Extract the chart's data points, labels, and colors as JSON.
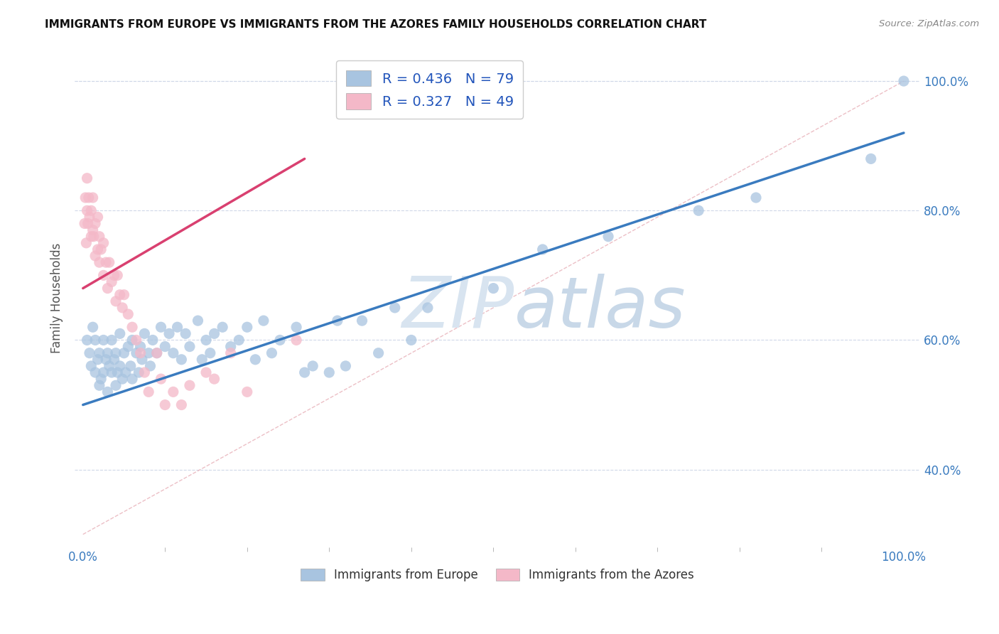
{
  "title": "IMMIGRANTS FROM EUROPE VS IMMIGRANTS FROM THE AZORES FAMILY HOUSEHOLDS CORRELATION CHART",
  "source": "Source: ZipAtlas.com",
  "ylabel": "Family Households",
  "R_blue": 0.436,
  "N_blue": 79,
  "R_pink": 0.327,
  "N_pink": 49,
  "blue_color": "#a8c4e0",
  "pink_color": "#f4b8c8",
  "trendline_blue_color": "#3a7bbf",
  "trendline_pink_color": "#d94070",
  "trendline_ref_color": "#e8b0b8",
  "watermark_color": "#d8e4f0",
  "legend_blue_label": "Immigrants from Europe",
  "legend_pink_label": "Immigrants from the Azores",
  "blue_x": [
    0.005,
    0.008,
    0.01,
    0.012,
    0.015,
    0.015,
    0.018,
    0.02,
    0.02,
    0.022,
    0.025,
    0.025,
    0.028,
    0.03,
    0.03,
    0.032,
    0.035,
    0.035,
    0.038,
    0.04,
    0.04,
    0.042,
    0.045,
    0.045,
    0.048,
    0.05,
    0.052,
    0.055,
    0.058,
    0.06,
    0.06,
    0.065,
    0.068,
    0.07,
    0.072,
    0.075,
    0.08,
    0.082,
    0.085,
    0.09,
    0.095,
    0.1,
    0.105,
    0.11,
    0.115,
    0.12,
    0.125,
    0.13,
    0.14,
    0.145,
    0.15,
    0.155,
    0.16,
    0.17,
    0.18,
    0.19,
    0.2,
    0.21,
    0.22,
    0.23,
    0.24,
    0.26,
    0.27,
    0.28,
    0.3,
    0.31,
    0.32,
    0.34,
    0.36,
    0.38,
    0.4,
    0.42,
    0.5,
    0.56,
    0.64,
    0.75,
    0.82,
    0.96,
    1.0
  ],
  "blue_y": [
    0.6,
    0.58,
    0.56,
    0.62,
    0.55,
    0.6,
    0.57,
    0.53,
    0.58,
    0.54,
    0.55,
    0.6,
    0.57,
    0.52,
    0.58,
    0.56,
    0.55,
    0.6,
    0.57,
    0.53,
    0.58,
    0.55,
    0.56,
    0.61,
    0.54,
    0.58,
    0.55,
    0.59,
    0.56,
    0.54,
    0.6,
    0.58,
    0.55,
    0.59,
    0.57,
    0.61,
    0.58,
    0.56,
    0.6,
    0.58,
    0.62,
    0.59,
    0.61,
    0.58,
    0.62,
    0.57,
    0.61,
    0.59,
    0.63,
    0.57,
    0.6,
    0.58,
    0.61,
    0.62,
    0.59,
    0.6,
    0.62,
    0.57,
    0.63,
    0.58,
    0.6,
    0.62,
    0.55,
    0.56,
    0.55,
    0.63,
    0.56,
    0.63,
    0.58,
    0.65,
    0.6,
    0.65,
    0.68,
    0.74,
    0.76,
    0.8,
    0.82,
    0.88,
    1.0
  ],
  "pink_x": [
    0.002,
    0.003,
    0.004,
    0.005,
    0.005,
    0.006,
    0.007,
    0.008,
    0.01,
    0.01,
    0.012,
    0.012,
    0.013,
    0.015,
    0.015,
    0.018,
    0.018,
    0.02,
    0.02,
    0.022,
    0.025,
    0.025,
    0.028,
    0.03,
    0.032,
    0.035,
    0.038,
    0.04,
    0.042,
    0.045,
    0.048,
    0.05,
    0.055,
    0.06,
    0.065,
    0.07,
    0.075,
    0.08,
    0.09,
    0.095,
    0.1,
    0.11,
    0.12,
    0.13,
    0.15,
    0.16,
    0.18,
    0.2,
    0.26
  ],
  "pink_y": [
    0.78,
    0.82,
    0.75,
    0.8,
    0.85,
    0.78,
    0.82,
    0.79,
    0.76,
    0.8,
    0.77,
    0.82,
    0.76,
    0.73,
    0.78,
    0.74,
    0.79,
    0.72,
    0.76,
    0.74,
    0.7,
    0.75,
    0.72,
    0.68,
    0.72,
    0.69,
    0.7,
    0.66,
    0.7,
    0.67,
    0.65,
    0.67,
    0.64,
    0.62,
    0.6,
    0.58,
    0.55,
    0.52,
    0.58,
    0.54,
    0.5,
    0.52,
    0.5,
    0.53,
    0.55,
    0.54,
    0.58,
    0.52,
    0.6
  ],
  "blue_trend_x": [
    0.0,
    1.0
  ],
  "blue_trend_y": [
    0.5,
    0.92
  ],
  "pink_trend_x": [
    0.0,
    0.27
  ],
  "pink_trend_y": [
    0.68,
    0.88
  ],
  "ref_trend_x": [
    0.0,
    1.0
  ],
  "ref_trend_y": [
    0.3,
    1.0
  ],
  "xlim": [
    -0.01,
    1.02
  ],
  "ylim": [
    0.28,
    1.05
  ],
  "ytick_vals": [
    0.4,
    0.6,
    0.8,
    1.0
  ],
  "ytick_labels": [
    "40.0%",
    "60.0%",
    "80.0%",
    "100.0%"
  ]
}
